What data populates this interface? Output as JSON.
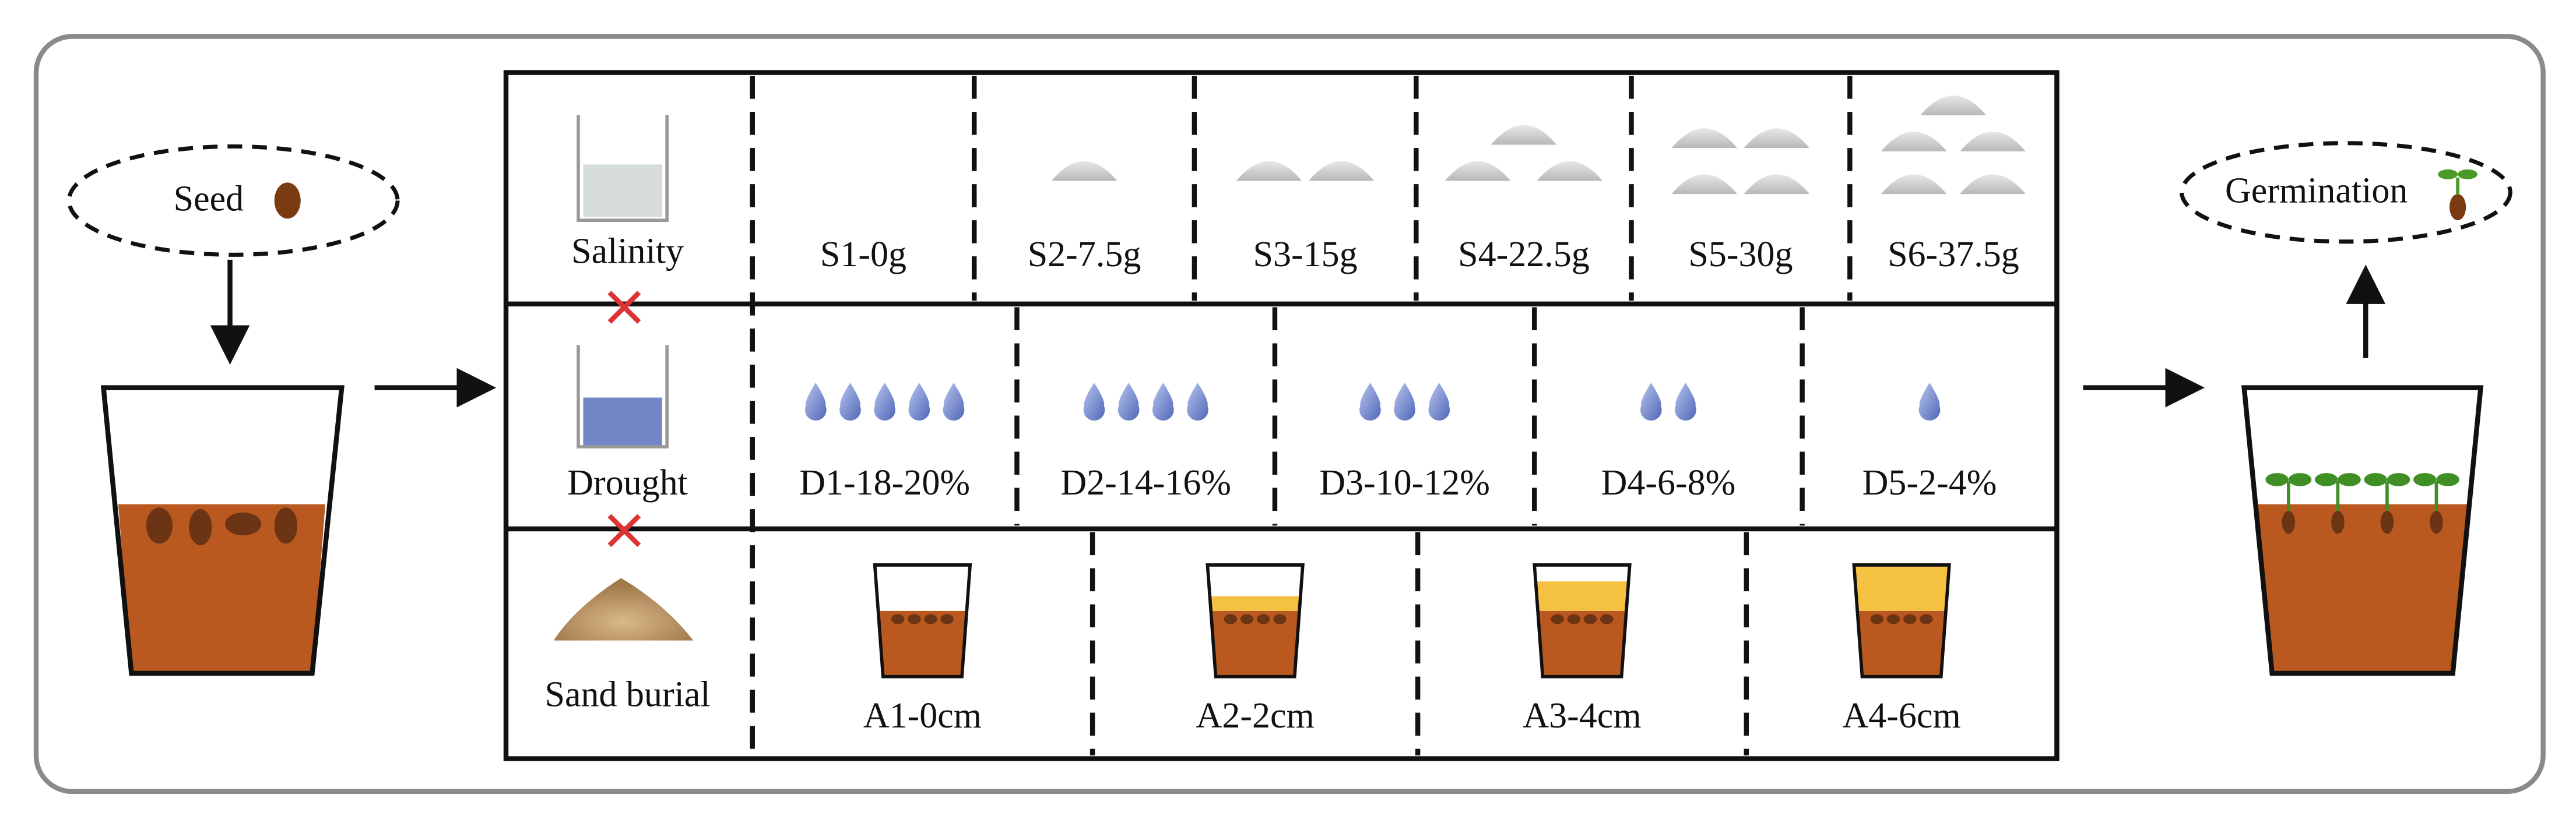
{
  "seed": "Seed",
  "germination": "Germination",
  "rows": [
    {
      "label": "Salinity",
      "treatments": [
        "S1-0g",
        "S2-7.5g",
        "S3-15g",
        "S4-22.5g",
        "S5-30g",
        "S6-37.5g"
      ]
    },
    {
      "label": "Drought",
      "treatments": [
        "D1-18-20%",
        "D2-14-16%",
        "D3-10-12%",
        "D4-6-8%",
        "D5-2-4%"
      ]
    },
    {
      "label": "Sand burial",
      "treatments": [
        "A1-0cm",
        "A2-2cm",
        "A3-4cm",
        "A4-6cm"
      ]
    }
  ]
}
